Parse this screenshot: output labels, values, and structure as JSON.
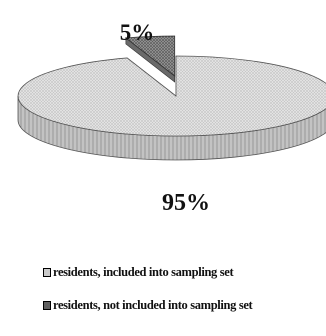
{
  "chart_data": {
    "type": "pie",
    "style": "3d-exploded",
    "slices": [
      {
        "label": "residents, included into sampling set",
        "value": 95,
        "display": "95%",
        "color": "#dcdcdc",
        "pattern": "light-dots"
      },
      {
        "label": "residents, not included into sampling set",
        "value": 5,
        "display": "5%",
        "color": "#8a8a8a",
        "pattern": "dark-dots",
        "exploded": true
      }
    ],
    "legend": {
      "position": "bottom-left",
      "items": [
        "residents, included into sampling set",
        "residents, not included into sampling set"
      ]
    }
  }
}
